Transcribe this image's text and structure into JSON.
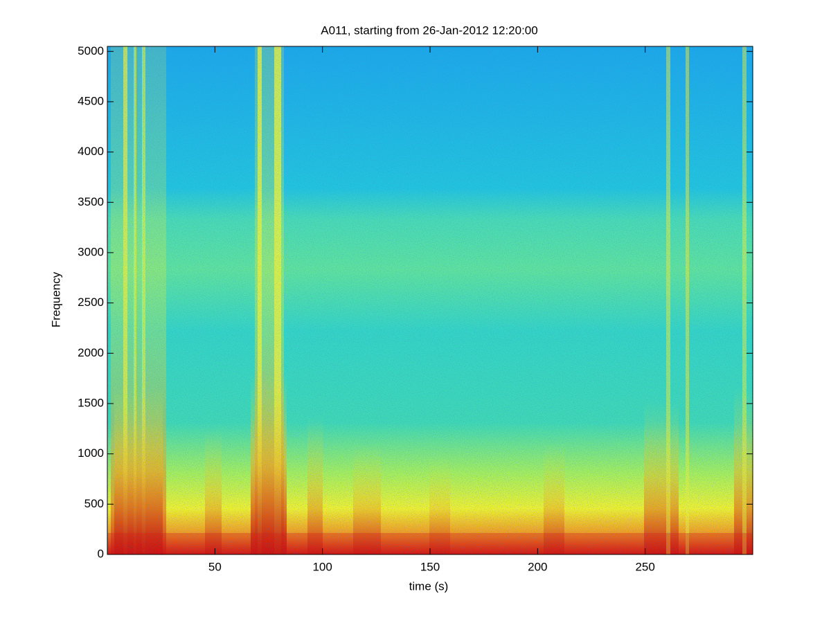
{
  "chart_data": {
    "type": "spectrogram",
    "title": "A011, starting from 26-Jan-2012 12:20:00",
    "x_label": "time (s)",
    "y_label": "Frequency",
    "xlim": [
      0,
      300
    ],
    "xticks": [
      50,
      100,
      150,
      200,
      250
    ],
    "ylim": [
      0,
      5050
    ],
    "yticks": [
      0,
      500,
      1000,
      1500,
      2000,
      2500,
      3000,
      3500,
      4000,
      4500,
      5000
    ]
  }
}
